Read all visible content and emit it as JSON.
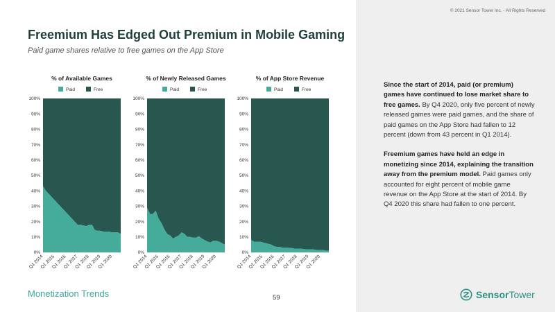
{
  "copyright": "© 2021 Sensor Tower Inc. - All Rights Reserved",
  "title": "Freemium Has Edged Out Premium in Mobile Gaming",
  "subtitle": "Paid game shares relative to free games on the App Store",
  "colors": {
    "paid": "#45ac9b",
    "free": "#27574f",
    "title": "#1f3f3a",
    "accent": "#3aa796"
  },
  "chart_data": [
    {
      "type": "area",
      "title": "% of Available Games",
      "legend": [
        "Paid",
        "Free"
      ],
      "legend_position": "top",
      "grid": false,
      "ylim": [
        0,
        100
      ],
      "yticks": [
        "0%",
        "10%",
        "20%",
        "30%",
        "40%",
        "50%",
        "60%",
        "70%",
        "80%",
        "90%",
        "100%"
      ],
      "xticks": [
        "Q1 2014",
        "Q1 2015",
        "Q1 2016",
        "Q1 2017",
        "Q1 2018",
        "Q1 2019",
        "Q1 2020"
      ],
      "x": [
        "Q1 2014",
        "Q2 2014",
        "Q3 2014",
        "Q4 2014",
        "Q1 2015",
        "Q2 2015",
        "Q3 2015",
        "Q4 2015",
        "Q1 2016",
        "Q2 2016",
        "Q3 2016",
        "Q4 2016",
        "Q1 2017",
        "Q2 2017",
        "Q3 2017",
        "Q4 2017",
        "Q1 2018",
        "Q2 2018",
        "Q3 2018",
        "Q4 2018",
        "Q1 2019",
        "Q2 2019",
        "Q3 2019",
        "Q4 2019",
        "Q1 2020",
        "Q2 2020",
        "Q3 2020",
        "Q4 2020"
      ],
      "series": [
        {
          "name": "Paid",
          "values": [
            43,
            40,
            38,
            36,
            34,
            32,
            30,
            28,
            26,
            24,
            22,
            20,
            18,
            18,
            17.5,
            17,
            18,
            18,
            14.5,
            14,
            14,
            13.5,
            13.5,
            13.5,
            13,
            13,
            13,
            12
          ]
        },
        {
          "name": "Free",
          "values": [
            57,
            60,
            62,
            64,
            66,
            68,
            70,
            72,
            74,
            76,
            78,
            80,
            82,
            82,
            82.5,
            83,
            82,
            82,
            85.5,
            86,
            86,
            86.5,
            86.5,
            86.5,
            87,
            87,
            87,
            88
          ]
        }
      ]
    },
    {
      "type": "area",
      "title": "% of Newly Released Games",
      "legend": [
        "Paid",
        "Free"
      ],
      "legend_position": "top",
      "grid": false,
      "ylim": [
        0,
        100
      ],
      "yticks": [
        "0%",
        "10%",
        "20%",
        "30%",
        "40%",
        "50%",
        "60%",
        "70%",
        "80%",
        "90%",
        "100%"
      ],
      "xticks": [
        "Q1 2014",
        "Q1 2015",
        "Q1 2016",
        "Q1 2017",
        "Q1 2018",
        "Q1 2019",
        "Q1 2020"
      ],
      "x": [
        "Q1 2014",
        "Q2 2014",
        "Q3 2014",
        "Q4 2014",
        "Q1 2015",
        "Q2 2015",
        "Q3 2015",
        "Q4 2015",
        "Q1 2016",
        "Q2 2016",
        "Q3 2016",
        "Q4 2016",
        "Q1 2017",
        "Q2 2017",
        "Q3 2017",
        "Q4 2017",
        "Q1 2018",
        "Q2 2018",
        "Q3 2018",
        "Q4 2018",
        "Q1 2019",
        "Q2 2019",
        "Q3 2019",
        "Q4 2019",
        "Q1 2020",
        "Q2 2020",
        "Q3 2020",
        "Q4 2020"
      ],
      "series": [
        {
          "name": "Paid",
          "values": [
            29,
            25,
            25,
            27,
            22,
            19,
            15,
            12,
            11,
            9,
            10,
            11,
            13,
            12,
            10,
            10,
            9.5,
            9.5,
            10.5,
            9,
            8,
            7,
            6.5,
            7.5,
            7.5,
            7,
            6,
            5
          ]
        },
        {
          "name": "Free",
          "values": [
            71,
            75,
            75,
            73,
            78,
            81,
            85,
            88,
            89,
            91,
            90,
            89,
            87,
            88,
            90,
            90,
            90.5,
            90.5,
            89.5,
            91,
            92,
            93,
            93.5,
            92.5,
            92.5,
            93,
            94,
            95
          ]
        }
      ]
    },
    {
      "type": "area",
      "title": "% of App Store Revenue",
      "legend": [
        "Paid",
        "Free"
      ],
      "legend_position": "top",
      "grid": false,
      "ylim": [
        0,
        100
      ],
      "yticks": [
        "0%",
        "10%",
        "20%",
        "30%",
        "40%",
        "50%",
        "60%",
        "70%",
        "80%",
        "90%",
        "100%"
      ],
      "xticks": [
        "Q1 2014",
        "Q1 2015",
        "Q1 2016",
        "Q1 2017",
        "Q1 2018",
        "Q1 2019",
        "Q1 2020"
      ],
      "x": [
        "Q1 2014",
        "Q2 2014",
        "Q3 2014",
        "Q4 2014",
        "Q1 2015",
        "Q2 2015",
        "Q3 2015",
        "Q4 2015",
        "Q1 2016",
        "Q2 2016",
        "Q3 2016",
        "Q4 2016",
        "Q1 2017",
        "Q2 2017",
        "Q3 2017",
        "Q4 2017",
        "Q1 2018",
        "Q2 2018",
        "Q3 2018",
        "Q4 2018",
        "Q1 2019",
        "Q2 2019",
        "Q3 2019",
        "Q4 2019",
        "Q1 2020",
        "Q2 2020",
        "Q3 2020",
        "Q4 2020"
      ],
      "series": [
        {
          "name": "Paid",
          "values": [
            8,
            7,
            7,
            7,
            6.5,
            6,
            5.5,
            5,
            4,
            3.5,
            3.5,
            3,
            3,
            3,
            2.8,
            2.5,
            2.5,
            2.5,
            2.2,
            2,
            2,
            2,
            1.8,
            1.5,
            1.5,
            1.5,
            1.2,
            1
          ]
        },
        {
          "name": "Free",
          "values": [
            92,
            93,
            93,
            93,
            93.5,
            94,
            94.5,
            95,
            96,
            96.5,
            96.5,
            97,
            97,
            97,
            97.2,
            97.5,
            97.5,
            97.5,
            97.8,
            98,
            98,
            98,
            98.2,
            98.5,
            98.5,
            98.5,
            98.8,
            99
          ]
        }
      ]
    }
  ],
  "summary": {
    "p1_bold": "Since the start of 2014, paid (or premium) games have continued to lose market share to free games.",
    "p1_text": " By Q4 2020, only five percent of newly released games were paid games, and the share of paid games on the App Store had fallen to 12 percent (down from 43 percent in Q1 2014).",
    "p2_bold": "Freemium games have held an edge in monetizing since 2014, explaining the transition away from the premium model.",
    "p2_text": " Paid games only accounted for eight percent of mobile game revenue on the App Store at the start of 2014. By Q4 2020 this share had fallen to one percent."
  },
  "footer": {
    "section": "Monetization Trends",
    "page": "59",
    "logo_bold": "Sensor",
    "logo_light": "Tower"
  }
}
